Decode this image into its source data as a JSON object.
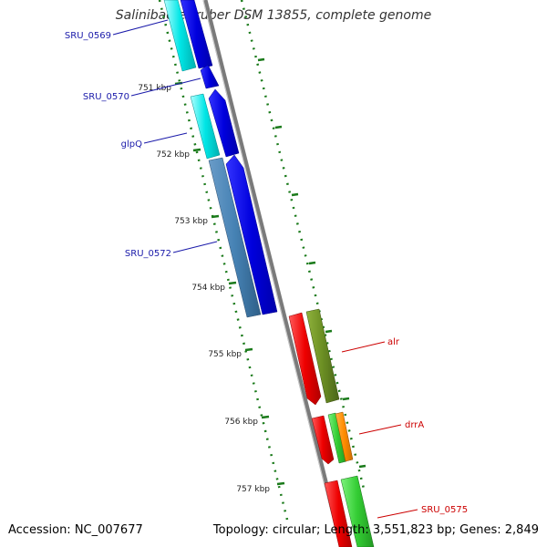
{
  "title": "Salinibacter ruber DSM 13855, complete genome",
  "footer": {
    "accession": "Accession: NC_007677",
    "summary": "Topology: circular; Length: 3,551,823 bp; Genes: 2,849"
  },
  "ticks": [
    {
      "label": "751 kbp"
    },
    {
      "label": "752 kbp"
    },
    {
      "label": "753 kbp"
    },
    {
      "label": "754 kbp"
    },
    {
      "label": "755 kbp"
    },
    {
      "label": "756 kbp"
    },
    {
      "label": "757 kbp"
    }
  ],
  "genes_left": [
    {
      "label": "SRU_0569"
    },
    {
      "label": "SRU_0570"
    },
    {
      "label": "glpQ"
    },
    {
      "label": "SRU_0572"
    }
  ],
  "genes_right": [
    {
      "label": "alr"
    },
    {
      "label": "drrA"
    },
    {
      "label": "SRU_0575"
    }
  ],
  "colors": {
    "backbone": "#888888",
    "ticks": "#1a7a1a",
    "label_left": "#1a1aaa",
    "label_right": "#cc0000",
    "cds_forward": "#0000ee",
    "cds_cyan": "#00e0e0",
    "cds_steel": "#4682b4",
    "cds_red": "#ee0000",
    "cds_olive": "#6b8e23",
    "cds_green": "#33cc33",
    "cds_orange": "#ff8c00"
  }
}
